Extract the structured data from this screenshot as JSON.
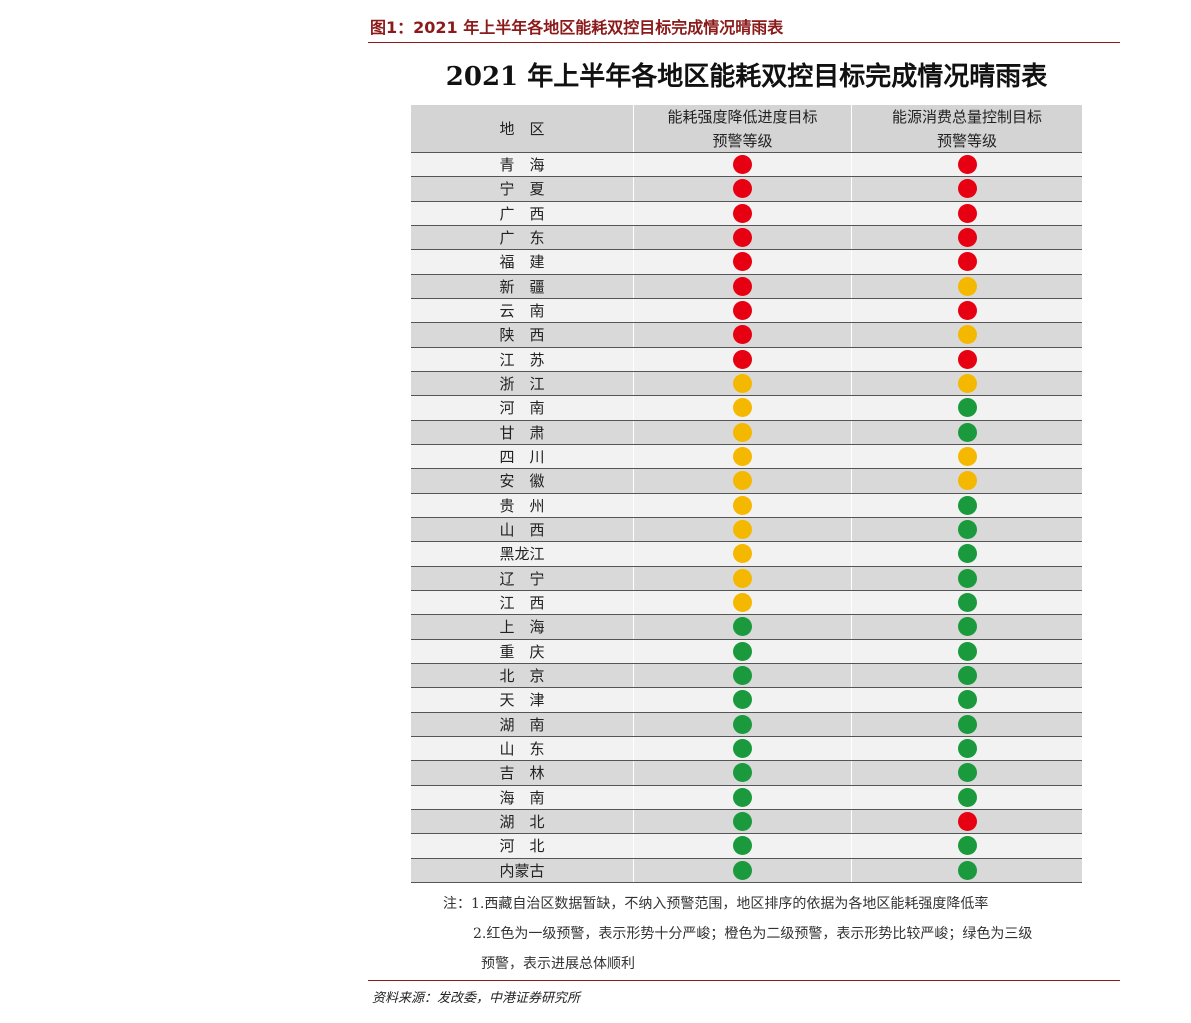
{
  "header": {
    "figure_label": "图1：2021 年上半年各地区能耗双控目标完成情况晴雨表",
    "title": "2021 年上半年各地区能耗双控目标完成情况晴雨表"
  },
  "table": {
    "columns": [
      [
        "地　区"
      ],
      [
        "能耗强度降低进度目标",
        "预警等级"
      ],
      [
        "能源消费总量控制目标",
        "预警等级"
      ]
    ],
    "rows": [
      [
        "青　海",
        "#e60012",
        "#e60012"
      ],
      [
        "宁　夏",
        "#e60012",
        "#e60012"
      ],
      [
        "广　西",
        "#e60012",
        "#e60012"
      ],
      [
        "广　东",
        "#e60012",
        "#e60012"
      ],
      [
        "福　建",
        "#e60012",
        "#e60012"
      ],
      [
        "新　疆",
        "#e60012",
        "#f5b800"
      ],
      [
        "云　南",
        "#e60012",
        "#e60012"
      ],
      [
        "陕　西",
        "#e60012",
        "#f5b800"
      ],
      [
        "江　苏",
        "#e60012",
        "#e60012"
      ],
      [
        "浙　江",
        "#f5b800",
        "#f5b800"
      ],
      [
        "河　南",
        "#f5b800",
        "#1a9a3c"
      ],
      [
        "甘　肃",
        "#f5b800",
        "#1a9a3c"
      ],
      [
        "四　川",
        "#f5b800",
        "#f5b800"
      ],
      [
        "安　徽",
        "#f5b800",
        "#f5b800"
      ],
      [
        "贵　州",
        "#f5b800",
        "#1a9a3c"
      ],
      [
        "山　西",
        "#f5b800",
        "#1a9a3c"
      ],
      [
        "黑龙江",
        "#f5b800",
        "#1a9a3c"
      ],
      [
        "辽　宁",
        "#f5b800",
        "#1a9a3c"
      ],
      [
        "江　西",
        "#f5b800",
        "#1a9a3c"
      ],
      [
        "上　海",
        "#1a9a3c",
        "#1a9a3c"
      ],
      [
        "重　庆",
        "#1a9a3c",
        "#1a9a3c"
      ],
      [
        "北　京",
        "#1a9a3c",
        "#1a9a3c"
      ],
      [
        "天　津",
        "#1a9a3c",
        "#1a9a3c"
      ],
      [
        "湖　南",
        "#1a9a3c",
        "#1a9a3c"
      ],
      [
        "山　东",
        "#1a9a3c",
        "#1a9a3c"
      ],
      [
        "吉　林",
        "#1a9a3c",
        "#1a9a3c"
      ],
      [
        "海　南",
        "#1a9a3c",
        "#1a9a3c"
      ],
      [
        "湖　北",
        "#1a9a3c",
        "#e60012"
      ],
      [
        "河　北",
        "#1a9a3c",
        "#1a9a3c"
      ],
      [
        "内蒙古",
        "#1a9a3c",
        "#1a9a3c"
      ]
    ]
  },
  "notes": [
    "注：1.西藏自治区数据暂缺，不纳入预警范围，地区排序的依据为各地区能耗强度降低率",
    "2.红色为一级预警，表示形势十分严峻；橙色为二级预警，表示形势比较严峻；绿色为三级",
    "预警，表示进展总体顺利"
  ],
  "footer": {
    "source": "资料来源：发改委，中港证券研究所"
  }
}
